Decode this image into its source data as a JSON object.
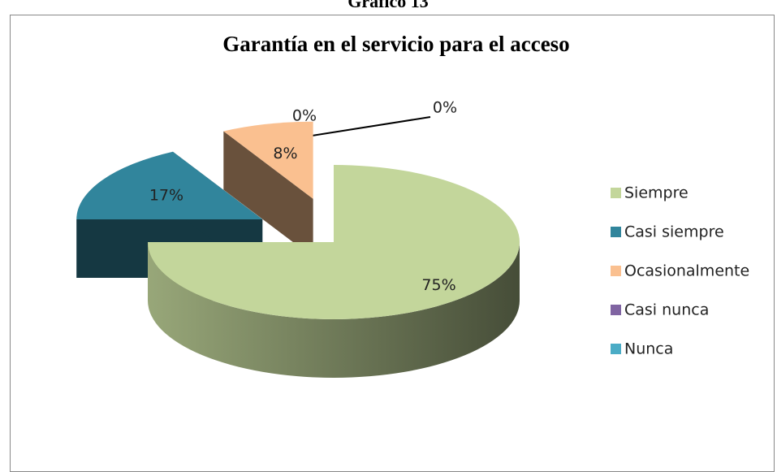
{
  "header": "Gráfico 13",
  "chart_data": {
    "type": "pie",
    "title": "Garantía en el servicio para el acceso",
    "categories": [
      "Siempre",
      "Casi siempre",
      "Ocasionalmente",
      "Casi nunca",
      "Nunca"
    ],
    "values": [
      75,
      17,
      8,
      0,
      0
    ],
    "value_labels": [
      "75%",
      "17%",
      "8%",
      "0%",
      "0%"
    ],
    "colors": [
      "#c3d69b",
      "#31859c",
      "#fac090",
      "#8064a2",
      "#4bacc6"
    ],
    "legend": "right",
    "three_d": true
  }
}
